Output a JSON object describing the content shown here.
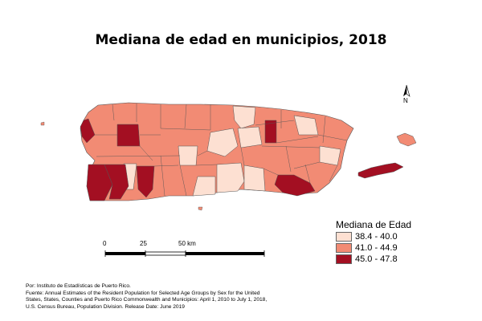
{
  "title": "Mediana de edad en municipios, 2018",
  "north_label": "N",
  "legend": {
    "title": "Mediana de Edad",
    "items": [
      {
        "label": "38.4 - 40.0",
        "color": "#fde0d2"
      },
      {
        "label": "41.0 - 44.9",
        "color": "#f28b74"
      },
      {
        "label": "45.0 - 47.8",
        "color": "#a30f22"
      }
    ]
  },
  "scale_bar": {
    "labels": [
      "0",
      "25",
      "50 km"
    ]
  },
  "footer": {
    "line1": "Por: Instituto de Estadísticas de Puerto Rico.",
    "line2": "Fuente: Annual Estimates of the Resident Population for Selected Age Groups by Sex for the United",
    "line3": "States, States, Counties and Puerto Rico Commonwealth and Municipios: April 1, 2010 to July 1, 2018,",
    "line4": "U.S. Census Bureau, Population Division. Release Date: June 2019"
  }
}
